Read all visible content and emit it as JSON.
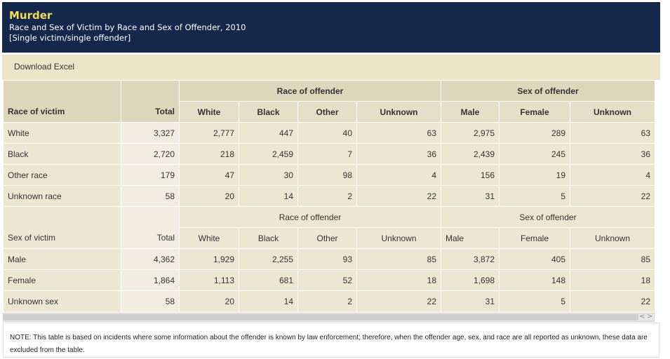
{
  "header": {
    "title": "Murder",
    "subtitle": "Race and Sex of Victim by Race and Sex of Offender, 2010",
    "subtitle2": "[Single victim/single offender]"
  },
  "toolbar": {
    "download_label": "Download Excel"
  },
  "table": {
    "group_race": "Race of offender",
    "group_sex": "Sex of offender",
    "race_header": {
      "label": "Race of victim",
      "total": "Total",
      "white": "White",
      "black": "Black",
      "other": "Other",
      "unknown": "Unknown",
      "male": "Male",
      "female": "Female",
      "unknown2": "Unknown"
    },
    "race_rows": [
      {
        "label": "White",
        "total": "3,327",
        "white": "2,777",
        "black": "447",
        "other": "40",
        "unknown": "63",
        "male": "2,975",
        "female": "289",
        "unknown2": "63"
      },
      {
        "label": "Black",
        "total": "2,720",
        "white": "218",
        "black": "2,459",
        "other": "7",
        "unknown": "36",
        "male": "2,439",
        "female": "245",
        "unknown2": "36"
      },
      {
        "label": "Other race",
        "total": "179",
        "white": "47",
        "black": "30",
        "other": "98",
        "unknown": "4",
        "male": "156",
        "female": "19",
        "unknown2": "4"
      },
      {
        "label": "Unknown race",
        "total": "58",
        "white": "20",
        "black": "14",
        "other": "2",
        "unknown": "22",
        "male": "31",
        "female": "5",
        "unknown2": "22"
      }
    ],
    "group_race_2": "Race of offender",
    "group_sex_2": "Sex of offender",
    "sex_header": {
      "label": "Sex of victim",
      "total": "Total",
      "white": "White",
      "black": "Black",
      "other": "Other",
      "unknown": "Unknown",
      "male": "Male",
      "female": "Female",
      "unknown2": "Unknown"
    },
    "sex_rows": [
      {
        "label": "Male",
        "total": "4,362",
        "white": "1,929",
        "black": "2,255",
        "other": "93",
        "unknown": "85",
        "male": "3,872",
        "female": "405",
        "unknown2": "85"
      },
      {
        "label": "Female",
        "total": "1,864",
        "white": "1,113",
        "black": "681",
        "other": "52",
        "unknown": "18",
        "male": "1,698",
        "female": "148",
        "unknown2": "18"
      },
      {
        "label": "Unknown sex",
        "total": "58",
        "white": "20",
        "black": "14",
        "other": "2",
        "unknown": "22",
        "male": "31",
        "female": "5",
        "unknown2": "22"
      }
    ]
  },
  "scrollbar": {
    "left_arrow": "<",
    "right_arrow": ">",
    "far_left_arrow": "<"
  },
  "note": "NOTE: This table is based on incidents where some information about the offender is known by law enforcement; therefore, when the offender age, sex, and race are all reported as unknown, these data are excluded from the table."
}
